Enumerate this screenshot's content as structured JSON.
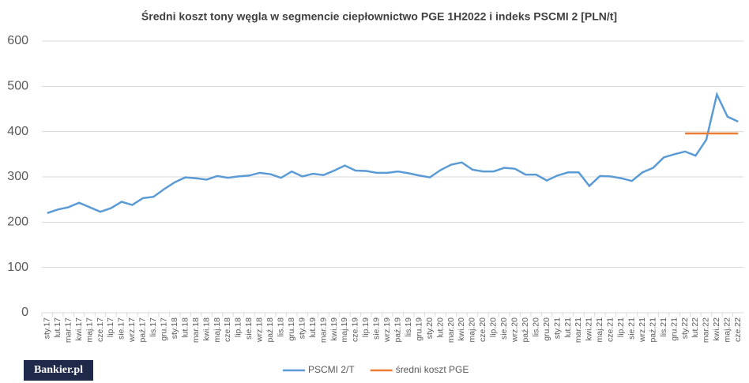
{
  "chart_data": {
    "type": "line",
    "title": "Średni koszt tony węgla w segmencie ciepłownictwo PGE 1H2022 i indeks PSCMI 2  [PLN/t]",
    "logo": "Bankier.pl",
    "categories": [
      "sty.17",
      "lut.17",
      "mar.17",
      "kwi.17",
      "maj.17",
      "cze.17",
      "lip.17",
      "sie.17",
      "wrz.17",
      "paź.17",
      "lis.17",
      "gru.17",
      "sty.18",
      "lut.18",
      "mar.18",
      "kwi.18",
      "maj.18",
      "cze.18",
      "lip.18",
      "sie.18",
      "wrz.18",
      "paź.18",
      "lis.18",
      "gru.18",
      "sty.19",
      "lut.19",
      "mar.19",
      "kwi.19",
      "maj.19",
      "cze.19",
      "lip.19",
      "sie.19",
      "wrz.19",
      "paź.19",
      "lis.19",
      "gru.19",
      "sty.20",
      "lut.20",
      "mar.20",
      "kwi.20",
      "maj.20",
      "cze.20",
      "lip.20",
      "sie.20",
      "wrz.20",
      "paź.20",
      "lis.20",
      "gru.20",
      "sty.21",
      "lut.21",
      "mar.21",
      "kwi.21",
      "maj.21",
      "cze.21",
      "lip.21",
      "sie.21",
      "wrz.21",
      "paź.21",
      "lis.21",
      "gru.21",
      "sty.22",
      "lut.22",
      "mar.22",
      "kwi.22",
      "maj.22",
      "cze.22"
    ],
    "series": [
      {
        "name": "PSCMI 2/T",
        "color": "#5b9bd5",
        "values": [
          220,
          228,
          233,
          243,
          233,
          223,
          231,
          245,
          238,
          253,
          256,
          273,
          288,
          299,
          297,
          294,
          302,
          298,
          301,
          303,
          309,
          306,
          298,
          312,
          301,
          307,
          304,
          314,
          325,
          314,
          313,
          309,
          309,
          312,
          308,
          303,
          299,
          315,
          327,
          332,
          316,
          312,
          312,
          320,
          318,
          305,
          305,
          292,
          303,
          310,
          310,
          280,
          302,
          301,
          297,
          291,
          310,
          320,
          343,
          350,
          356,
          347,
          382,
          482,
          433,
          422
        ]
      },
      {
        "name": "średni koszt PGE",
        "color": "#ed7d31",
        "values": [
          null,
          null,
          null,
          null,
          null,
          null,
          null,
          null,
          null,
          null,
          null,
          null,
          null,
          null,
          null,
          null,
          null,
          null,
          null,
          null,
          null,
          null,
          null,
          null,
          null,
          null,
          null,
          null,
          null,
          null,
          null,
          null,
          null,
          null,
          null,
          null,
          null,
          null,
          null,
          null,
          null,
          null,
          null,
          null,
          null,
          null,
          null,
          null,
          null,
          null,
          null,
          null,
          null,
          null,
          null,
          null,
          null,
          null,
          null,
          null,
          396,
          396,
          396,
          396,
          396,
          396
        ]
      }
    ],
    "ylim": [
      0,
      600
    ],
    "yticks": [
      0,
      100,
      200,
      300,
      400,
      500,
      600
    ],
    "grid": true
  }
}
